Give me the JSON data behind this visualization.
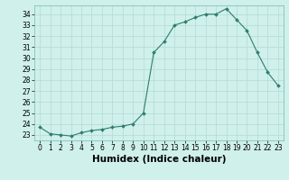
{
  "x": [
    0,
    1,
    2,
    3,
    4,
    5,
    6,
    7,
    8,
    9,
    10,
    11,
    12,
    13,
    14,
    15,
    16,
    17,
    18,
    19,
    20,
    21,
    22,
    23
  ],
  "y": [
    23.7,
    23.1,
    23.0,
    22.9,
    23.2,
    23.4,
    23.5,
    23.7,
    23.8,
    24.0,
    25.0,
    30.5,
    31.5,
    33.0,
    33.3,
    33.7,
    34.0,
    34.0,
    34.5,
    33.5,
    32.5,
    30.5,
    28.7,
    27.5
  ],
  "line_color": "#2e7d6e",
  "marker": "D",
  "marker_size": 2.0,
  "bg_color": "#cff0eb",
  "grid_color": "#b8ddd8",
  "xlabel": "Humidex (Indice chaleur)",
  "xlim": [
    -0.5,
    23.5
  ],
  "ylim": [
    22.5,
    34.8
  ],
  "yticks": [
    23,
    24,
    25,
    26,
    27,
    28,
    29,
    30,
    31,
    32,
    33,
    34
  ],
  "xticks": [
    0,
    1,
    2,
    3,
    4,
    5,
    6,
    7,
    8,
    9,
    10,
    11,
    12,
    13,
    14,
    15,
    16,
    17,
    18,
    19,
    20,
    21,
    22,
    23
  ],
  "tick_labelsize": 5.5,
  "xlabel_fontsize": 7.5,
  "xlabel_fontweight": "bold",
  "linewidth": 0.8
}
